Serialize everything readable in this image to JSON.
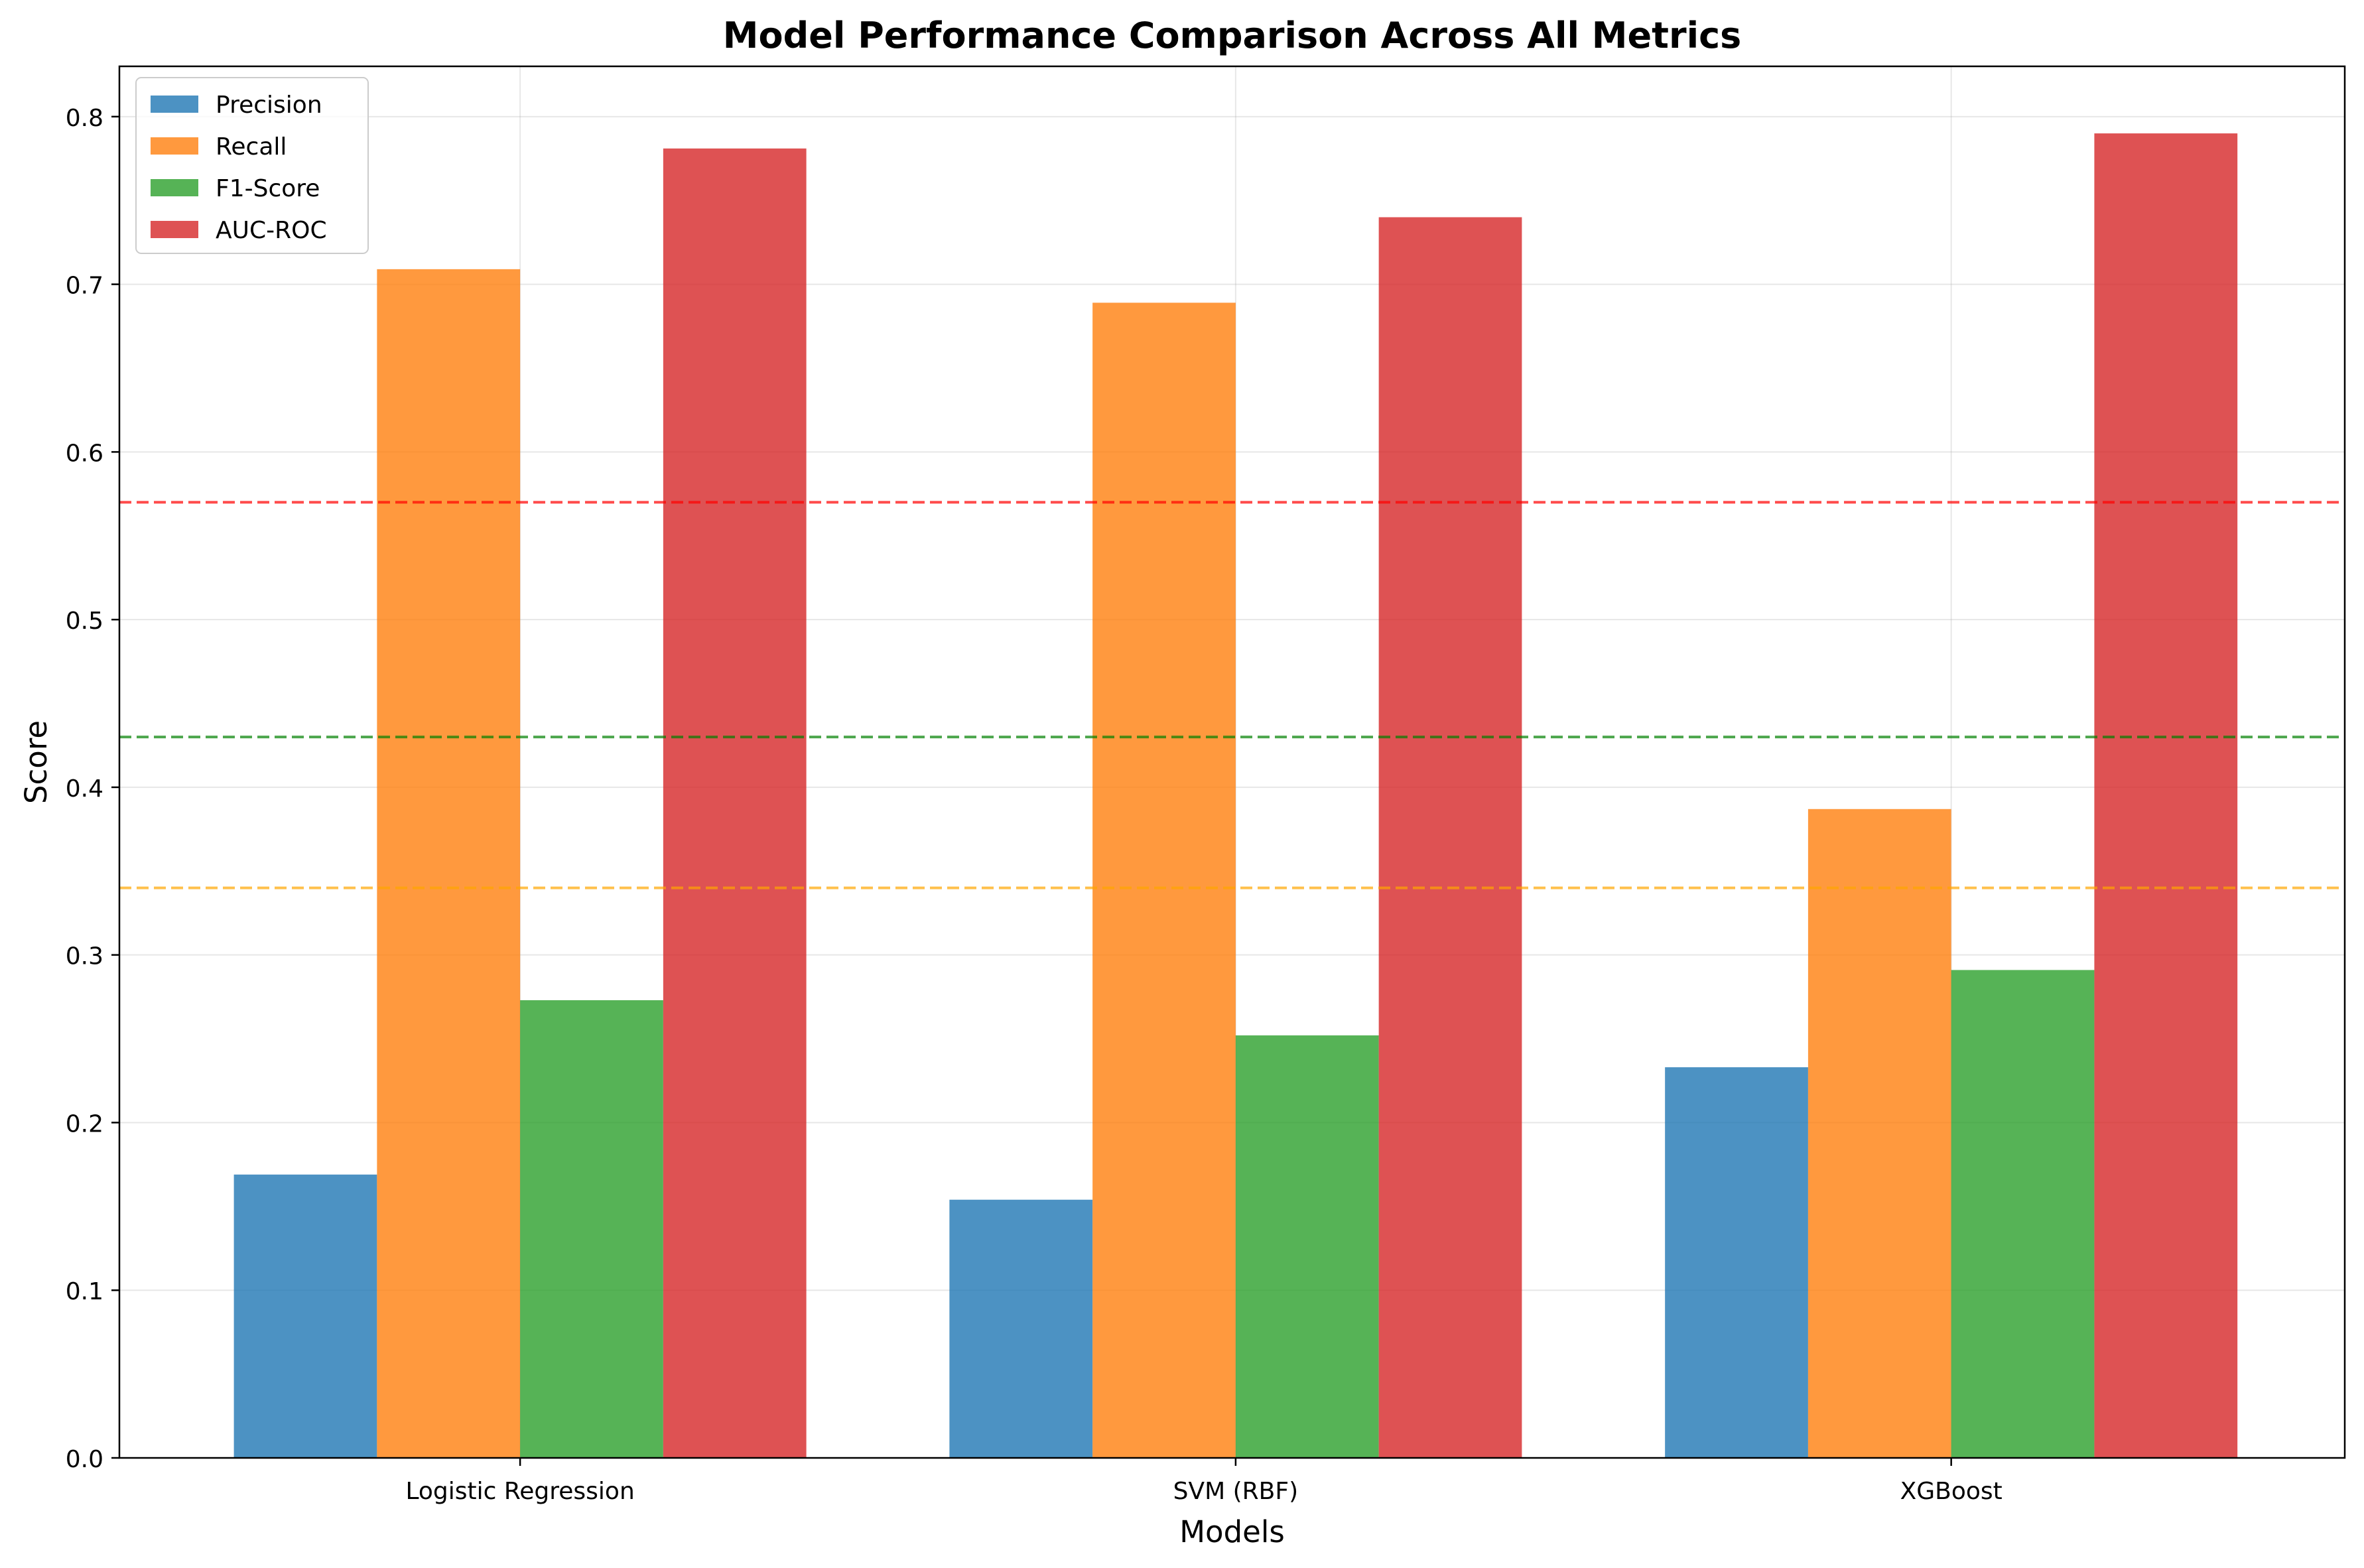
{
  "chart_data": {
    "type": "bar",
    "title": "Model Performance Comparison Across All Metrics",
    "xlabel": "Models",
    "ylabel": "Score",
    "categories": [
      "Logistic Regression",
      "SVM (RBF)",
      "XGBoost"
    ],
    "series": [
      {
        "name": "Precision",
        "color": "#1f77b4",
        "values": [
          0.169,
          0.154,
          0.233
        ]
      },
      {
        "name": "Recall",
        "color": "#ff7f0e",
        "values": [
          0.709,
          0.689,
          0.387
        ]
      },
      {
        "name": "F1-Score",
        "color": "#2ca02c",
        "values": [
          0.273,
          0.252,
          0.291
        ]
      },
      {
        "name": "AUC-ROC",
        "color": "#d62728",
        "values": [
          0.781,
          0.74,
          0.79
        ]
      }
    ],
    "reference_lines": [
      {
        "value": 0.57,
        "color": "#ff0000",
        "style": "dashed"
      },
      {
        "value": 0.43,
        "color": "#008000",
        "style": "dashed"
      },
      {
        "value": 0.34,
        "color": "#ffa500",
        "style": "dashed"
      }
    ],
    "ylim": [
      0,
      0.83
    ],
    "yticks": [
      0.0,
      0.1,
      0.2,
      0.3,
      0.4,
      0.5,
      0.6,
      0.7,
      0.8
    ],
    "ytick_labels": [
      "0.0",
      "0.1",
      "0.2",
      "0.3",
      "0.4",
      "0.5",
      "0.6",
      "0.7",
      "0.8"
    ],
    "grid": true,
    "legend_position": "top-left"
  }
}
